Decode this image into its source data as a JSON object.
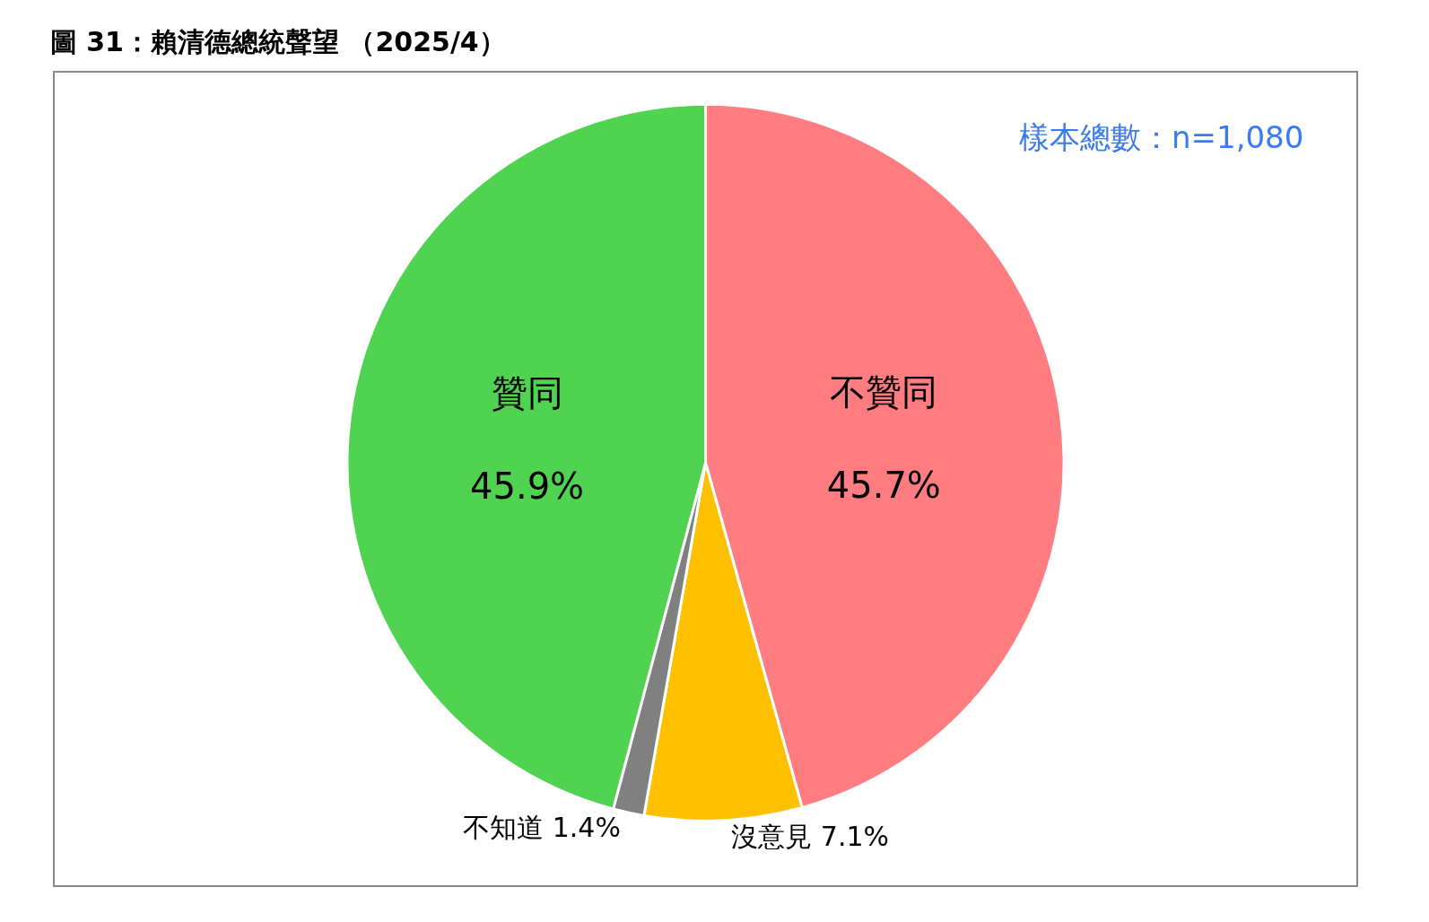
{
  "chart_data": {
    "type": "pie",
    "title": "圖 31：賴清德總統聲望 （2025/4）",
    "categories": [
      "不贊同",
      "沒意見",
      "不知道",
      "贊同"
    ],
    "values": [
      45.7,
      7.1,
      1.4,
      45.9
    ],
    "value_labels": [
      "45.7%",
      "7.1%",
      "1.4%",
      "45.9%"
    ],
    "colors": [
      "#ff7c80",
      "#ffc000",
      "#808080",
      "#4fd350"
    ],
    "annotations": [
      "樣本總數：n=1,080"
    ]
  }
}
